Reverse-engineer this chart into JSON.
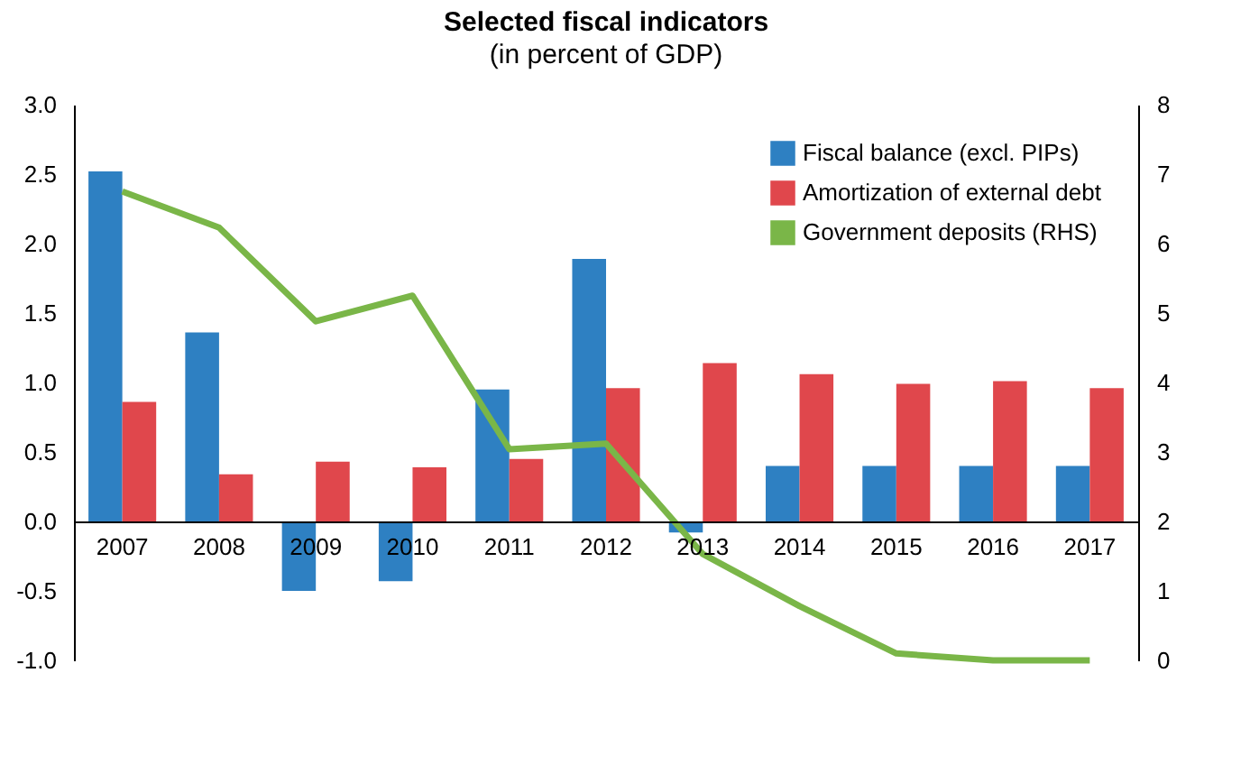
{
  "chart_data": {
    "type": "bar",
    "title": "Selected fiscal indicators",
    "subtitle": "(in percent of GDP)",
    "categories": [
      "2007",
      "2008",
      "2009",
      "2010",
      "2011",
      "2012",
      "2013",
      "2014",
      "2015",
      "2016",
      "2017"
    ],
    "series": [
      {
        "name": "Fiscal balance (excl. PIPs)",
        "color": "#2e80c2",
        "values": [
          2.52,
          1.36,
          -0.5,
          -0.43,
          0.95,
          1.89,
          -0.08,
          0.4,
          0.4,
          0.4,
          0.4
        ]
      },
      {
        "name": "Amortization of external debt",
        "color": "#e0474c",
        "values": [
          0.86,
          0.34,
          0.43,
          0.39,
          0.45,
          0.96,
          1.14,
          1.06,
          0.99,
          1.01,
          0.96
        ]
      },
      {
        "name": "Government deposits (RHS)",
        "type": "line",
        "axis": "y2",
        "color": "#7ab648",
        "values": [
          6.75,
          6.23,
          4.88,
          5.25,
          3.04,
          3.12,
          1.53,
          0.78,
          0.1,
          0,
          0
        ]
      }
    ],
    "ylim": [
      -1,
      3
    ],
    "yticks": [
      {
        "value": -1,
        "label": "-1.0"
      },
      {
        "value": -0.5,
        "label": "-0.5"
      },
      {
        "value": 0,
        "label": "0.0"
      },
      {
        "value": 0.5,
        "label": "0.5"
      },
      {
        "value": 1,
        "label": "1.0"
      },
      {
        "value": 1.5,
        "label": "1.5"
      },
      {
        "value": 2,
        "label": "2.0"
      },
      {
        "value": 2.5,
        "label": "2.5"
      },
      {
        "value": 3,
        "label": "3.0"
      }
    ],
    "y2lim": [
      0,
      8
    ],
    "y2ticks": [
      0,
      1,
      2,
      3,
      4,
      5,
      6,
      7,
      8
    ],
    "legend": "top right",
    "grid": false,
    "marker": "none"
  }
}
